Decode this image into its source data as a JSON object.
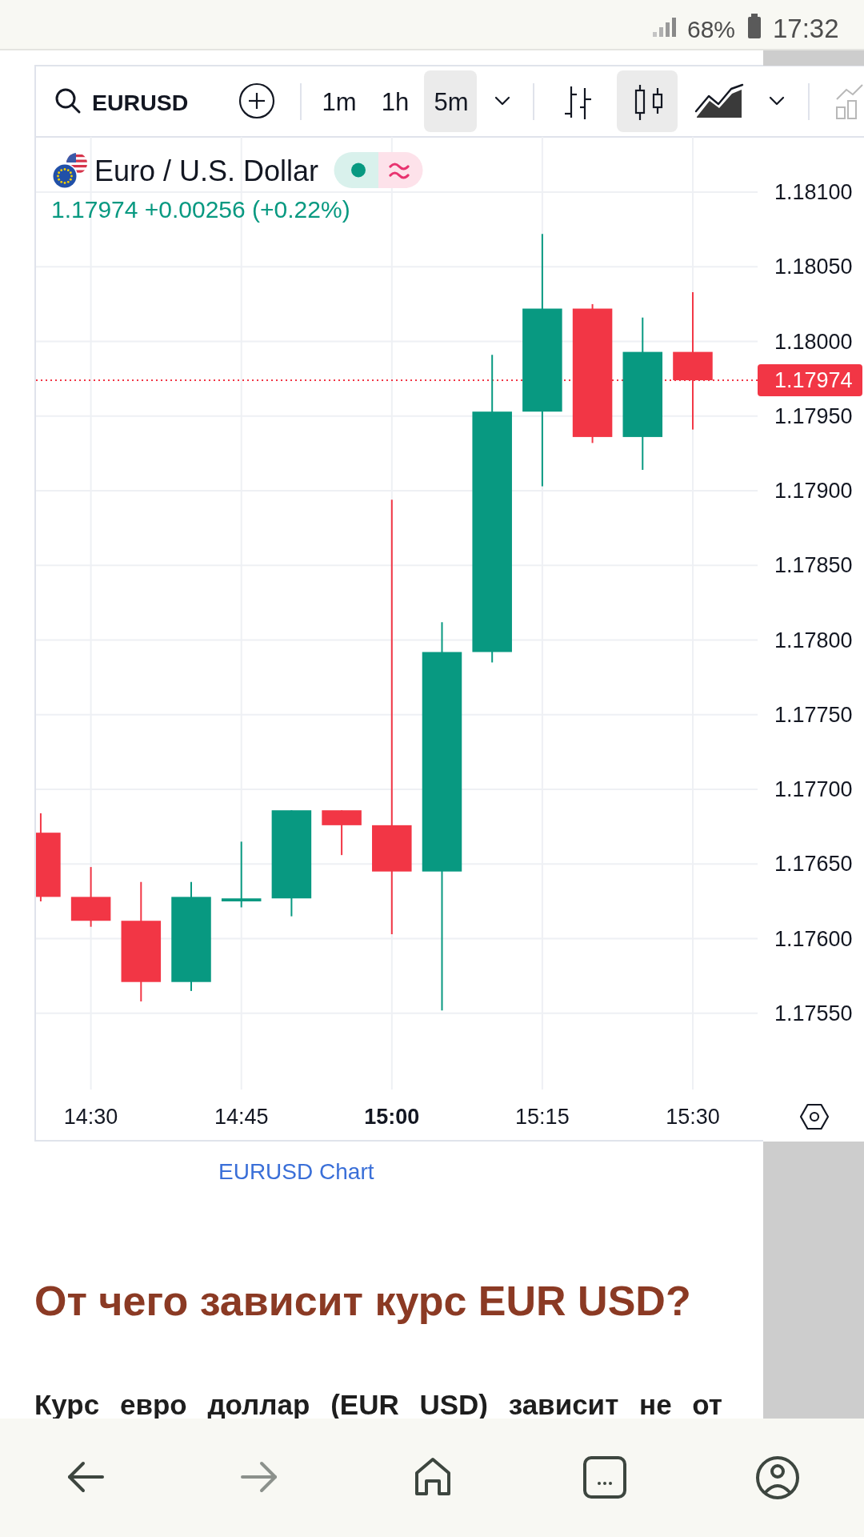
{
  "chart_data": {
    "type": "candlestick",
    "title": "Euro / U.S. Dollar",
    "subtitle": "1.17974 +0.00256 (+0.22%)",
    "x": [
      14.41667,
      14.5,
      14.58333,
      14.66667,
      14.75,
      14.83333,
      14.91667,
      15,
      15.08333,
      15.16667,
      15.25,
      15.33333,
      15.41667,
      15.5
    ],
    "ohlc": [
      [
        1.17671,
        1.17684,
        1.17625,
        1.17628
      ],
      [
        1.17628,
        1.17648,
        1.17608,
        1.17612
      ],
      [
        1.17612,
        1.17638,
        1.17558,
        1.17571
      ],
      [
        1.17571,
        1.17638,
        1.17565,
        1.17628
      ],
      [
        1.17625,
        1.17665,
        1.17621,
        1.17627
      ],
      [
        1.17627,
        1.17686,
        1.17615,
        1.17686
      ],
      [
        1.17686,
        1.17686,
        1.17656,
        1.17676
      ],
      [
        1.17676,
        1.17894,
        1.17603,
        1.17645
      ],
      [
        1.17645,
        1.17812,
        1.17552,
        1.17792
      ],
      [
        1.17792,
        1.17991,
        1.17785,
        1.17953
      ],
      [
        1.17953,
        1.18072,
        1.17903,
        1.18022
      ],
      [
        1.18022,
        1.18025,
        1.17932,
        1.17936
      ],
      [
        1.17936,
        1.18016,
        1.17914,
        1.17993
      ],
      [
        1.17993,
        1.18033,
        1.17941,
        1.17974
      ]
    ],
    "colors": [
      "#f23645",
      "#f23645",
      "#f23645",
      "#089981",
      "#089981",
      "#089981",
      "#f23645",
      "#f23645",
      "#089981",
      "#089981",
      "#089981",
      "#f23645",
      "#089981",
      "#f23645"
    ],
    "xlim": [
      14.4088,
      15.6077
    ],
    "ylim": [
      1.17499,
      1.18137
    ],
    "xticks": [
      {
        "value": 14.5,
        "label": "14:30"
      },
      {
        "value": 14.75,
        "label": "14:45"
      },
      {
        "value": 15,
        "label": "15:00"
      },
      {
        "value": 15.25,
        "label": "15:15"
      },
      {
        "value": 15.5,
        "label": "15:30"
      }
    ],
    "yticks": [
      {
        "value": 1.1755,
        "label": "1.17550"
      },
      {
        "value": 1.176,
        "label": "1.17600"
      },
      {
        "value": 1.1765,
        "label": "1.17650"
      },
      {
        "value": 1.177,
        "label": "1.17700"
      },
      {
        "value": 1.1775,
        "label": "1.17750"
      },
      {
        "value": 1.178,
        "label": "1.17800"
      },
      {
        "value": 1.1785,
        "label": "1.17850"
      },
      {
        "value": 1.179,
        "label": "1.17900"
      },
      {
        "value": 1.1795,
        "label": "1.17950"
      },
      {
        "value": 1.18,
        "label": "1.18000"
      },
      {
        "value": 1.1805,
        "label": "1.18050"
      },
      {
        "value": 1.181,
        "label": "1.18100"
      }
    ],
    "grid": true,
    "ref_lines": [
      {
        "axis": "y",
        "value": 1.17974,
        "label": "1.17974",
        "color": "#f23645",
        "line_style": "dotted"
      }
    ],
    "annotations": [
      "68%",
      "17:32",
      "EURUSD",
      "1m",
      "1h",
      "5m",
      "EURUSD Chart",
      "От чего зависит курс EUR USD?",
      "Курс евро доллар (EUR USD) зависит не от"
    ]
  }
}
